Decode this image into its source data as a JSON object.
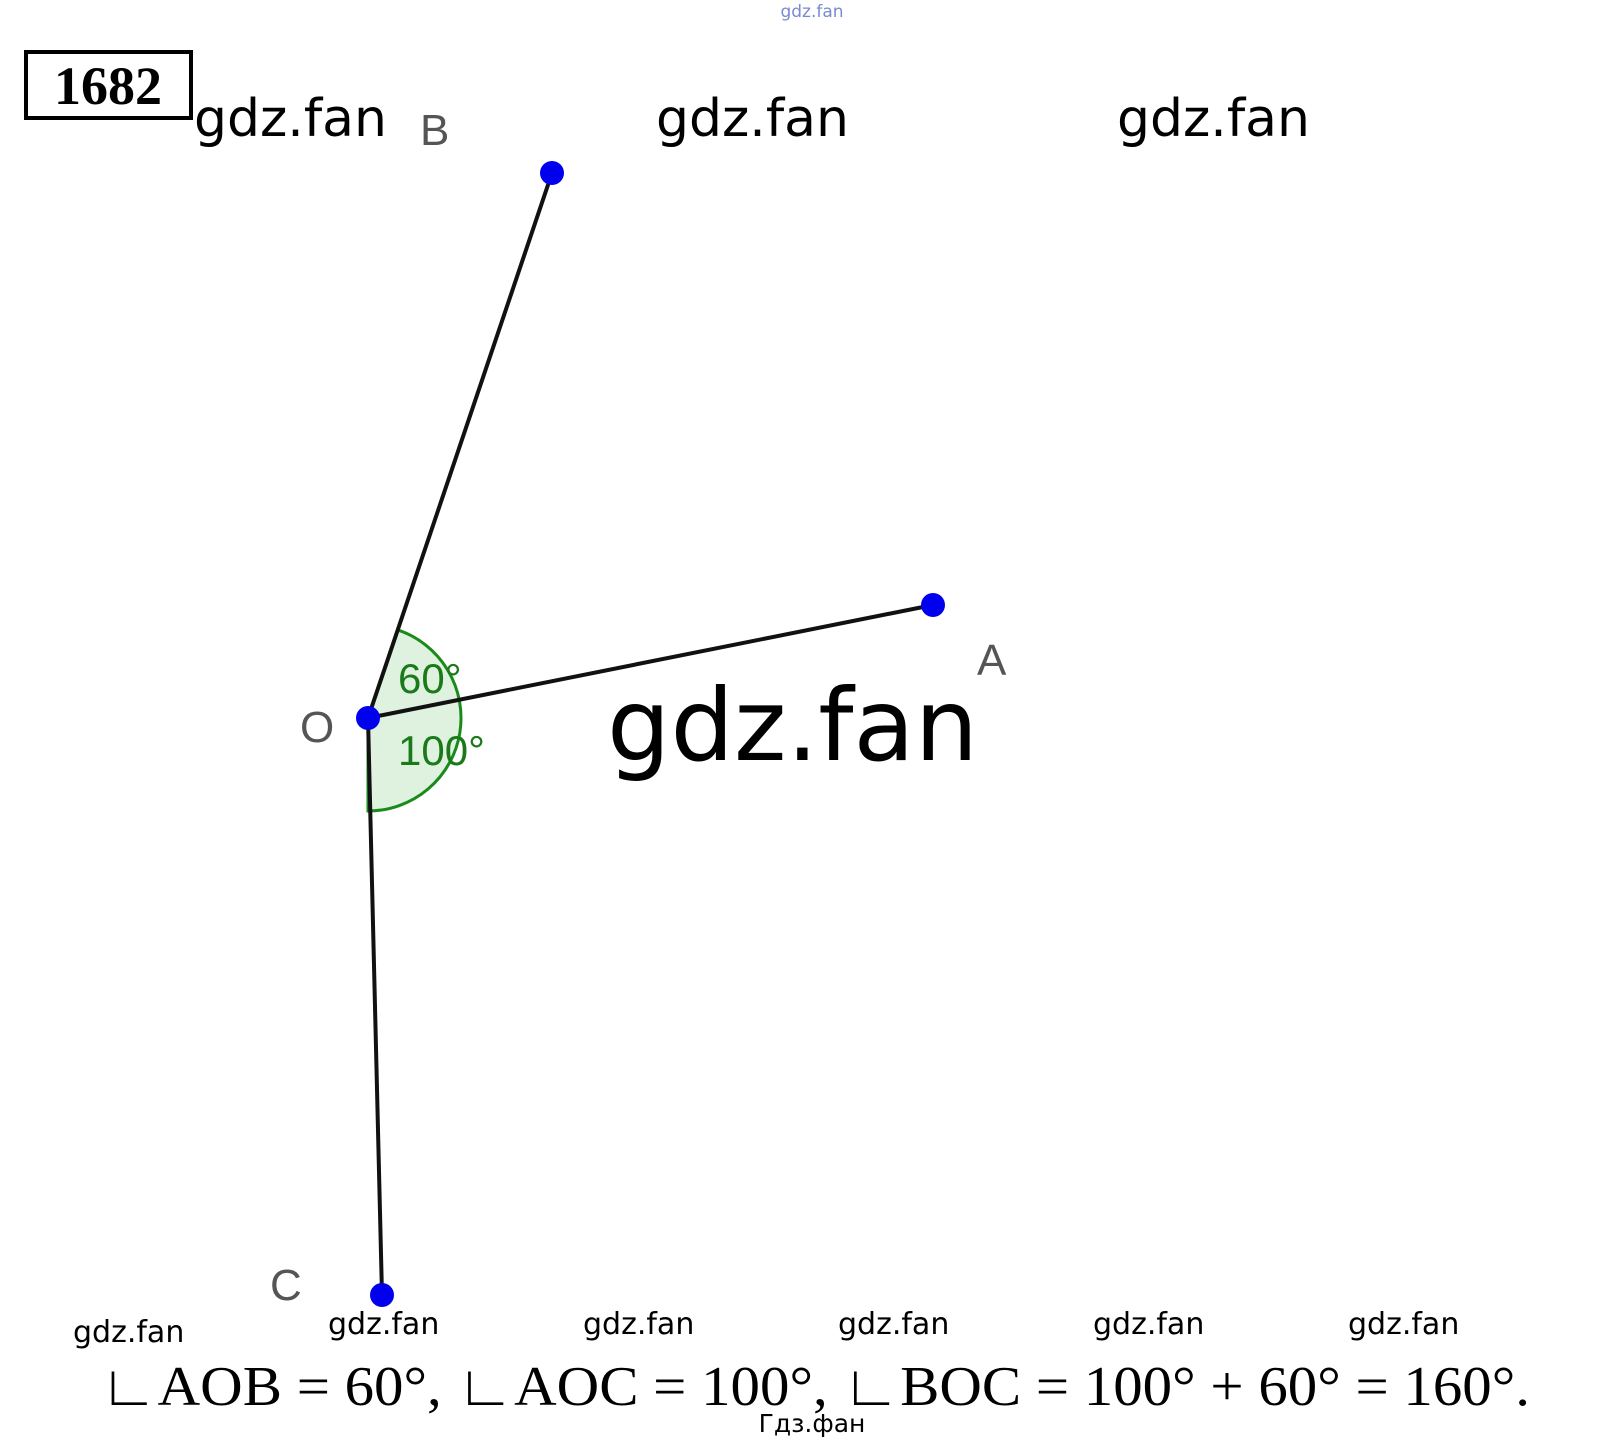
{
  "problem_number": "1682",
  "top_mark": "gdz.fan",
  "watermarks": [
    "gdz.fan",
    "gdz.fan",
    "gdz.fan",
    "gdz.fan",
    "gdz.fan",
    "gdz.fan",
    "gdz.fan",
    "gdz.fan",
    "gdz.fan",
    "gdz.fan"
  ],
  "points": {
    "A": "A",
    "B": "B",
    "O": "O",
    "C": "C"
  },
  "angles": [
    "60°",
    "100°"
  ],
  "solution": "∟AOB = 60°, ∟AOC = 100°, ∟BOC = 100° + 60° = 160°.",
  "footer": "Гдз.фан"
}
